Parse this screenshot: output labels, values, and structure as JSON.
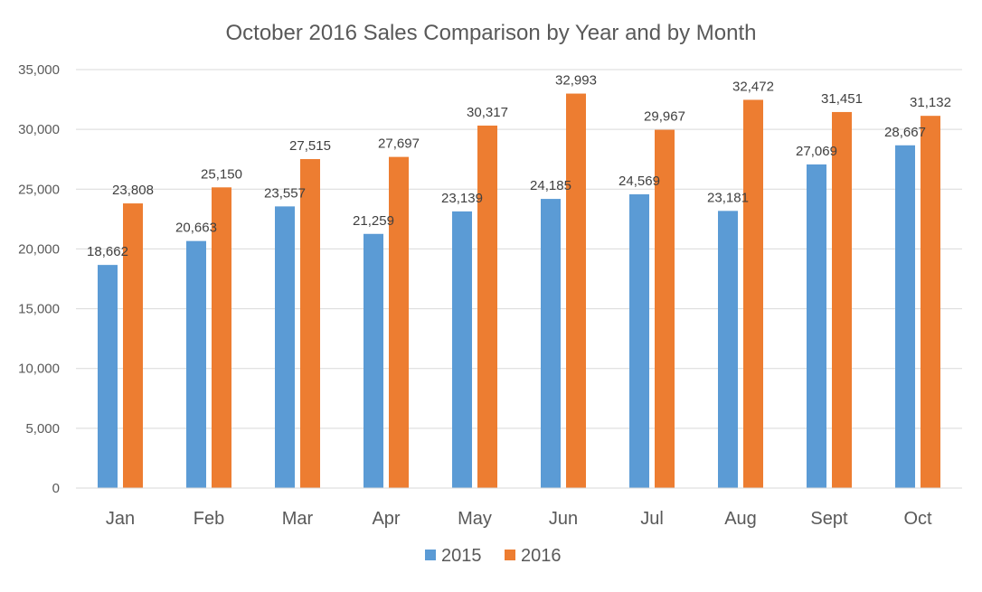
{
  "chart_data": {
    "type": "bar",
    "title": "October 2016 Sales Comparison by Year and by Month",
    "xlabel": "",
    "ylabel": "",
    "categories": [
      "Jan",
      "Feb",
      "Mar",
      "Apr",
      "May",
      "Jun",
      "Jul",
      "Aug",
      "Sept",
      "Oct"
    ],
    "series": [
      {
        "name": "2015",
        "color": "#5b9bd5",
        "values": [
          18662,
          20663,
          23557,
          21259,
          23139,
          24185,
          24569,
          23181,
          27069,
          28667
        ],
        "labels": [
          "18,662",
          "20,663",
          "23,557",
          "21,259",
          "23,139",
          "24,185",
          "24,569",
          "23,181",
          "27,069",
          "28,667"
        ]
      },
      {
        "name": "2016",
        "color": "#ed7d31",
        "values": [
          23808,
          25150,
          27515,
          27697,
          30317,
          32993,
          29967,
          32472,
          31451,
          31132
        ],
        "labels": [
          "23,808",
          "25,150",
          "27,515",
          "27,697",
          "30,317",
          "32,993",
          "29,967",
          "32,472",
          "31,451",
          "31,132"
        ]
      }
    ],
    "ylim": [
      0,
      35000
    ],
    "yticks": [
      0,
      5000,
      10000,
      15000,
      20000,
      25000,
      30000,
      35000
    ],
    "ytick_labels": [
      "0",
      "5,000",
      "10,000",
      "15,000",
      "20,000",
      "25,000",
      "30,000",
      "35,000"
    ],
    "grid": true,
    "legend_position": "bottom"
  }
}
